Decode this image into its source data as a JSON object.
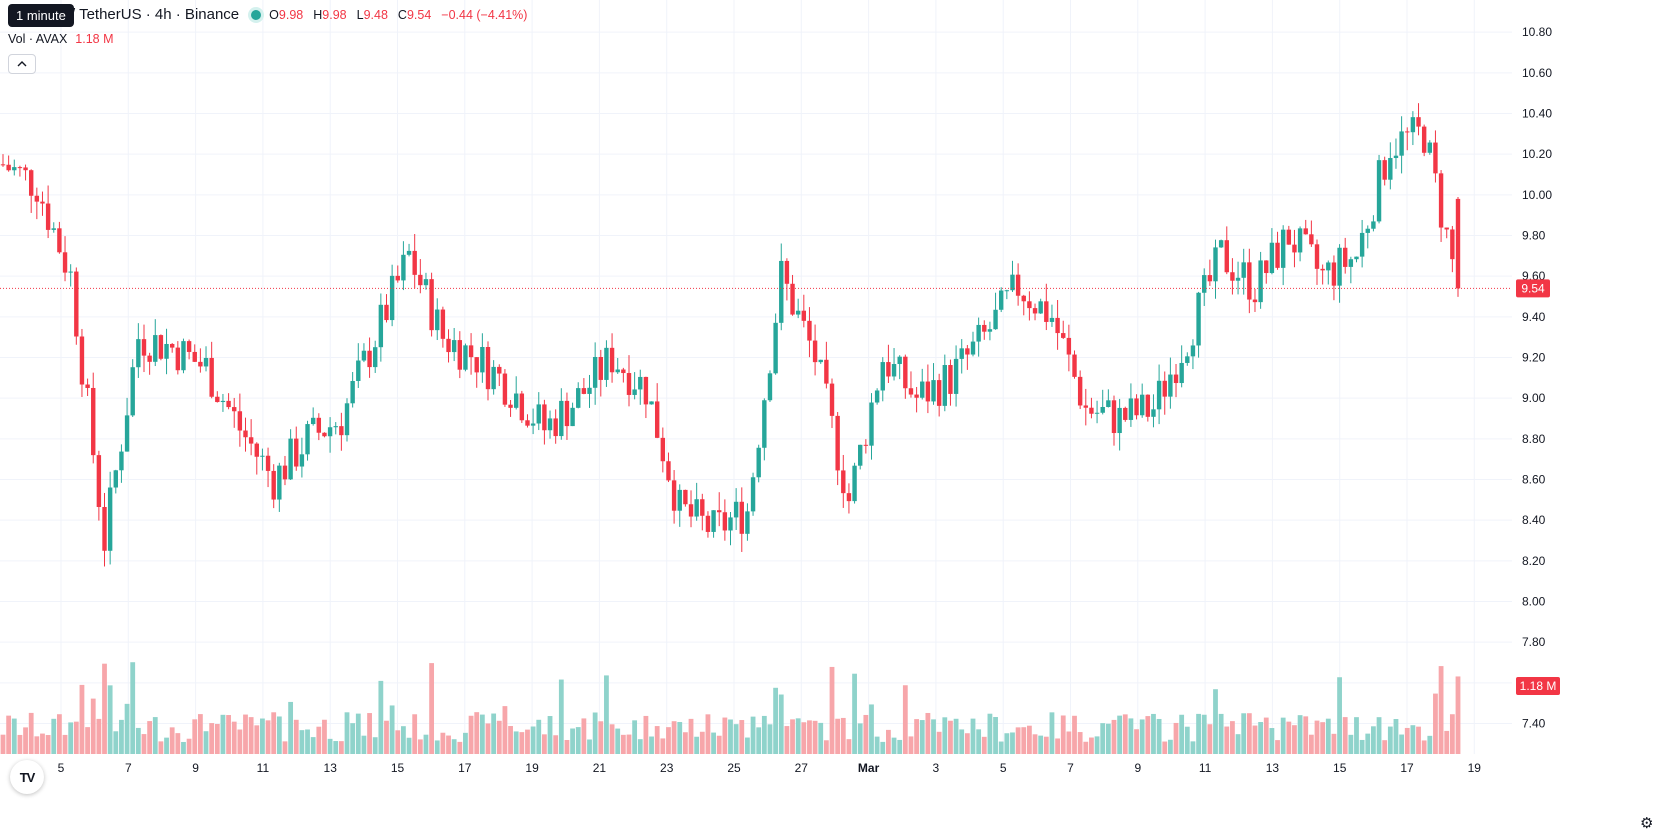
{
  "tooltip": "1 minute",
  "header": {
    "title": "/ TetherUS · 4h · Binance",
    "o_label": "O",
    "o": "9.98",
    "h_label": "H",
    "h": "9.98",
    "l_label": "L",
    "l": "9.48",
    "c_label": "C",
    "c": "9.54",
    "change": "−0.44 (−4.41%)"
  },
  "volume_legend": {
    "label": "Vol · AVAX",
    "value": "1.18 M"
  },
  "collapse_icon": "chevron-up-icon",
  "logo_text": "TV",
  "colors": {
    "up": "#26a69a",
    "down": "#f23645",
    "vol_up": "#8fd3cb",
    "vol_down": "#f7a6aa",
    "grid": "#f0f3fa"
  },
  "chart_data": {
    "type": "candlestick",
    "interval": "4h",
    "price_axis": {
      "ticks": [
        "10.80",
        "10.60",
        "10.40",
        "10.20",
        "10.00",
        "9.80",
        "9.60",
        "9.40",
        "9.20",
        "9.00",
        "8.80",
        "8.60",
        "8.40",
        "8.20",
        "8.00",
        "7.80",
        "7.60",
        "7.40"
      ],
      "ylim": [
        7.25,
        10.85
      ]
    },
    "x_axis_labels": [
      "5",
      "7",
      "9",
      "11",
      "13",
      "15",
      "17",
      "19",
      "21",
      "23",
      "25",
      "27",
      "Mar",
      "3",
      "5",
      "7",
      "9",
      "11",
      "13",
      "15",
      "17",
      "19"
    ],
    "last_price": "9.54",
    "last_volume": "1.18 M",
    "keypoints": [
      {
        "date": "Feb 3",
        "close": 10.15
      },
      {
        "date": "Feb 4",
        "close": 10.05
      },
      {
        "date": "Feb 5",
        "close": 9.6
      },
      {
        "date": "Feb 6",
        "close": 8.3
      },
      {
        "date": "Feb 7",
        "close": 9.3
      },
      {
        "date": "Feb 8",
        "close": 9.25
      },
      {
        "date": "Feb 9",
        "close": 9.15
      },
      {
        "date": "Feb 10",
        "close": 8.85
      },
      {
        "date": "Feb 11",
        "close": 8.6
      },
      {
        "date": "Feb 12",
        "close": 8.8
      },
      {
        "date": "Feb 13",
        "close": 8.9
      },
      {
        "date": "Feb 14",
        "close": 9.3
      },
      {
        "date": "Feb 15",
        "close": 9.7
      },
      {
        "date": "Feb 16",
        "close": 9.3
      },
      {
        "date": "Feb 17",
        "close": 9.2
      },
      {
        "date": "Feb 18",
        "close": 9.05
      },
      {
        "date": "Feb 19",
        "close": 8.85
      },
      {
        "date": "Feb 20",
        "close": 9.0
      },
      {
        "date": "Feb 21",
        "close": 9.2
      },
      {
        "date": "Feb 22",
        "close": 9.05
      },
      {
        "date": "Feb 23",
        "close": 8.45
      },
      {
        "date": "Feb 24",
        "close": 8.35
      },
      {
        "date": "Feb 25",
        "close": 8.45
      },
      {
        "date": "Feb 26",
        "close": 9.6
      },
      {
        "date": "Feb 27",
        "close": 9.2
      },
      {
        "date": "Feb 28",
        "close": 8.5
      },
      {
        "date": "Mar 1",
        "close": 9.2
      },
      {
        "date": "Mar 2",
        "close": 9.0
      },
      {
        "date": "Mar 3",
        "close": 9.1
      },
      {
        "date": "Mar 4",
        "close": 9.3
      },
      {
        "date": "Mar 5",
        "close": 9.55
      },
      {
        "date": "Mar 6",
        "close": 9.4
      },
      {
        "date": "Mar 7",
        "close": 8.95
      },
      {
        "date": "Mar 8",
        "close": 8.9
      },
      {
        "date": "Mar 9",
        "close": 8.95
      },
      {
        "date": "Mar 10",
        "close": 9.3
      },
      {
        "date": "Mar 11",
        "close": 9.7
      },
      {
        "date": "Mar 12",
        "close": 9.55
      },
      {
        "date": "Mar 13",
        "close": 9.8
      },
      {
        "date": "Mar 14",
        "close": 9.6
      },
      {
        "date": "Mar 15",
        "close": 9.7
      },
      {
        "date": "Mar 16",
        "close": 10.25
      },
      {
        "date": "Mar 17",
        "close": 10.3
      },
      {
        "date": "Mar 18",
        "close": 9.54
      }
    ]
  }
}
